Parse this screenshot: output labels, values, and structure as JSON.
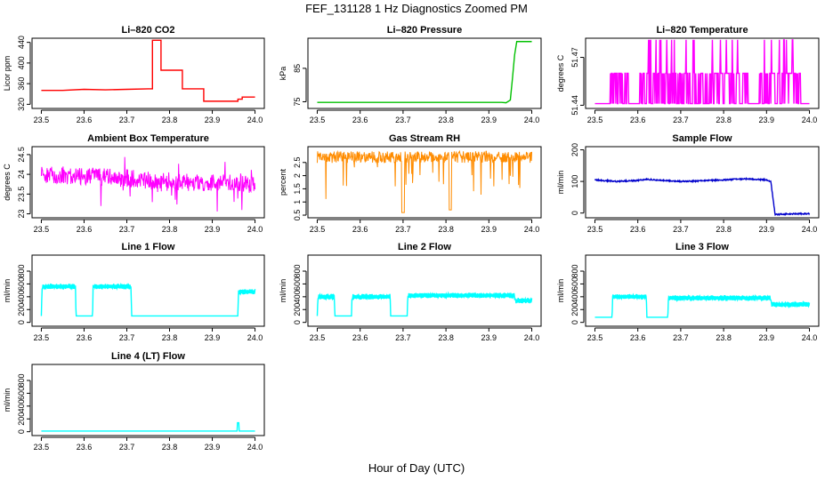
{
  "figure": {
    "title": "FEF_131128  1 Hz Diagnostics Zoomed PM",
    "xlabel": "Hour of Day (UTC)"
  },
  "chart_data": [
    {
      "type": "line",
      "title": "Li–820 CO2",
      "xlabel": "",
      "ylabel": "Licor ppm",
      "xlim": [
        23.5,
        24.0
      ],
      "ylim": [
        312,
        448
      ],
      "xticks": [
        "23.5",
        "23.6",
        "23.7",
        "23.8",
        "23.9",
        "24.0"
      ],
      "yticks": [
        320,
        360,
        400,
        440
      ],
      "color": "#ff0000",
      "series": [
        {
          "x": [
            23.5,
            23.55,
            23.6,
            23.65,
            23.7,
            23.75,
            23.75,
            23.76,
            23.76,
            23.78,
            23.78,
            23.8,
            23.8,
            23.83,
            23.83,
            23.86,
            23.86,
            23.88,
            23.88,
            23.94,
            23.94,
            23.96,
            23.96,
            23.97,
            23.97,
            24.0
          ],
          "y": [
            347,
            347,
            349,
            348,
            349,
            350,
            350,
            350,
            444,
            444,
            386,
            386,
            386,
            386,
            350,
            350,
            350,
            350,
            326,
            326,
            326,
            326,
            330,
            330,
            334,
            334
          ]
        }
      ]
    },
    {
      "type": "line",
      "title": "Li–820 Pressure",
      "xlabel": "",
      "ylabel": "kPa",
      "xlim": [
        23.5,
        24.0
      ],
      "ylim": [
        73,
        94
      ],
      "xticks": [
        "23.5",
        "23.6",
        "23.7",
        "23.8",
        "23.9",
        "24.0"
      ],
      "yticks": [
        75,
        85
      ],
      "color": "#00c000",
      "series": [
        {
          "x": [
            23.5,
            23.6,
            23.7,
            23.8,
            23.9,
            23.93,
            23.94,
            23.95,
            23.955,
            23.96,
            23.965,
            24.0
          ],
          "y": [
            74.8,
            74.8,
            74.8,
            74.8,
            74.8,
            74.8,
            74.7,
            75.5,
            82,
            89,
            93,
            93
          ]
        }
      ]
    },
    {
      "type": "line",
      "title": "Li–820 Temperature",
      "xlabel": "",
      "ylabel": "degrees C",
      "xlim": [
        23.5,
        24.0
      ],
      "ylim": [
        51.438,
        51.482
      ],
      "xticks": [
        "23.5",
        "23.6",
        "23.7",
        "23.8",
        "23.9",
        "24.0"
      ],
      "yticks": [
        51.44,
        51.47
      ],
      "color": "#ff00ff",
      "series": [
        {
          "x": [
            23.5,
            23.535,
            23.536,
            23.54,
            23.541,
            23.55,
            23.56,
            23.57,
            23.58,
            23.6,
            23.62,
            23.65,
            23.67,
            23.7,
            23.72,
            23.75,
            23.78,
            23.8,
            23.83,
            23.85,
            23.87,
            23.88,
            23.9,
            23.93,
            23.95,
            23.96,
            23.97,
            23.98,
            24.0
          ],
          "y": [
            51.441,
            51.441,
            51.46,
            51.481,
            51.441,
            51.46,
            51.481,
            51.441,
            51.46,
            51.441,
            51.46,
            51.441,
            51.46,
            51.46,
            51.441,
            51.46,
            51.441,
            51.46,
            51.441,
            51.46,
            51.481,
            51.441,
            51.46,
            51.441,
            51.481,
            51.46,
            51.441,
            51.46,
            51.441
          ]
        }
      ]
    },
    {
      "type": "line",
      "title": "Ambient Box Temperature",
      "xlabel": "",
      "ylabel": "degrees C",
      "xlim": [
        23.5,
        24.0
      ],
      "ylim": [
        22.9,
        24.7
      ],
      "xticks": [
        "23.5",
        "23.6",
        "23.7",
        "23.8",
        "23.9",
        "24.0"
      ],
      "yticks": [
        23.0,
        23.5,
        24.0,
        24.5
      ],
      "color": "#ff00ff",
      "series": [
        {
          "x": [
            23.5,
            23.6,
            23.7,
            23.8,
            23.9,
            24.0
          ],
          "y": [
            24.0,
            23.95,
            23.9,
            23.8,
            23.8,
            23.75
          ]
        }
      ]
    },
    {
      "type": "line",
      "title": "Gas Stream RH",
      "xlabel": "",
      "ylabel": "percent",
      "xlim": [
        23.5,
        24.0
      ],
      "ylim": [
        0.4,
        3.1
      ],
      "xticks": [
        "23.5",
        "23.6",
        "23.7",
        "23.8",
        "23.9",
        "24.0"
      ],
      "yticks": [
        0.5,
        1.0,
        1.5,
        2.0,
        2.5
      ],
      "color": "#ff8c00",
      "series": [
        {
          "x": [
            23.5,
            23.6,
            23.7,
            23.8,
            23.9,
            24.0
          ],
          "y": [
            2.7,
            2.7,
            2.7,
            2.7,
            2.7,
            2.7
          ]
        }
      ]
    },
    {
      "type": "line",
      "title": "Sample Flow",
      "xlabel": "",
      "ylabel": "ml/min",
      "xlim": [
        23.5,
        24.0
      ],
      "ylim": [
        -15,
        210
      ],
      "xticks": [
        "23.5",
        "23.6",
        "23.7",
        "23.8",
        "23.9",
        "24.0"
      ],
      "yticks": [
        0,
        100,
        200
      ],
      "color": "#0000cc",
      "series": [
        {
          "x": [
            23.5,
            23.55,
            23.6,
            23.62,
            23.65,
            23.7,
            23.75,
            23.8,
            23.85,
            23.9,
            23.91,
            23.92,
            23.95,
            24.0
          ],
          "y": [
            105,
            100,
            103,
            107,
            104,
            100,
            102,
            105,
            108,
            105,
            100,
            -5,
            -3,
            -2
          ]
        }
      ]
    },
    {
      "type": "line",
      "title": "Line 1 Flow",
      "xlabel": "",
      "ylabel": "ml/min",
      "xlim": [
        23.5,
        24.0
      ],
      "ylim": [
        -60,
        1050
      ],
      "xticks": [
        "23.5",
        "23.6",
        "23.7",
        "23.8",
        "23.9",
        "24.0"
      ],
      "yticks": [
        0,
        200,
        400,
        600,
        800
      ],
      "color": "#00ffff",
      "series": [
        {
          "x": [
            23.5,
            23.502,
            23.58,
            23.581,
            23.62,
            23.621,
            23.71,
            23.711,
            23.96,
            23.961,
            24.0
          ],
          "y": [
            100,
            560,
            560,
            100,
            100,
            560,
            560,
            100,
            100,
            480,
            480
          ]
        }
      ]
    },
    {
      "type": "line",
      "title": "Line 2 Flow",
      "xlabel": "",
      "ylabel": "ml/min",
      "xlim": [
        23.5,
        24.0
      ],
      "ylim": [
        -60,
        1050
      ],
      "xticks": [
        "23.5",
        "23.6",
        "23.7",
        "23.8",
        "23.9",
        "24.0"
      ],
      "yticks": [
        0,
        200,
        400,
        600,
        800
      ],
      "color": "#00ffff",
      "series": [
        {
          "x": [
            23.5,
            23.502,
            23.54,
            23.541,
            23.58,
            23.581,
            23.67,
            23.671,
            23.71,
            23.711,
            23.96,
            23.961,
            24.0
          ],
          "y": [
            100,
            400,
            400,
            100,
            100,
            400,
            400,
            100,
            100,
            420,
            420,
            340,
            340
          ]
        }
      ]
    },
    {
      "type": "line",
      "title": "Line 3 Flow",
      "xlabel": "",
      "ylabel": "ml/min",
      "xlim": [
        23.5,
        24.0
      ],
      "ylim": [
        -60,
        1050
      ],
      "xticks": [
        "23.5",
        "23.6",
        "23.7",
        "23.8",
        "23.9",
        "24.0"
      ],
      "yticks": [
        0,
        200,
        400,
        600,
        800
      ],
      "color": "#00ffff",
      "series": [
        {
          "x": [
            23.5,
            23.502,
            23.54,
            23.541,
            23.62,
            23.621,
            23.67,
            23.671,
            23.91,
            23.911,
            24.0
          ],
          "y": [
            80,
            80,
            80,
            400,
            400,
            80,
            80,
            380,
            380,
            280,
            280
          ]
        }
      ]
    },
    {
      "type": "line",
      "title": "Line 4 (LT) Flow",
      "xlabel": "",
      "ylabel": "ml/min",
      "xlim": [
        23.5,
        24.0
      ],
      "ylim": [
        -60,
        1050
      ],
      "xticks": [
        "23.5",
        "23.6",
        "23.7",
        "23.8",
        "23.9",
        "24.0"
      ],
      "yticks": [
        0,
        200,
        400,
        600,
        800
      ],
      "color": "#00ffff",
      "series": [
        {
          "x": [
            23.5,
            23.9,
            23.958,
            23.959,
            23.962,
            23.963,
            24.0
          ],
          "y": [
            10,
            10,
            10,
            140,
            140,
            10,
            10
          ]
        }
      ]
    }
  ]
}
